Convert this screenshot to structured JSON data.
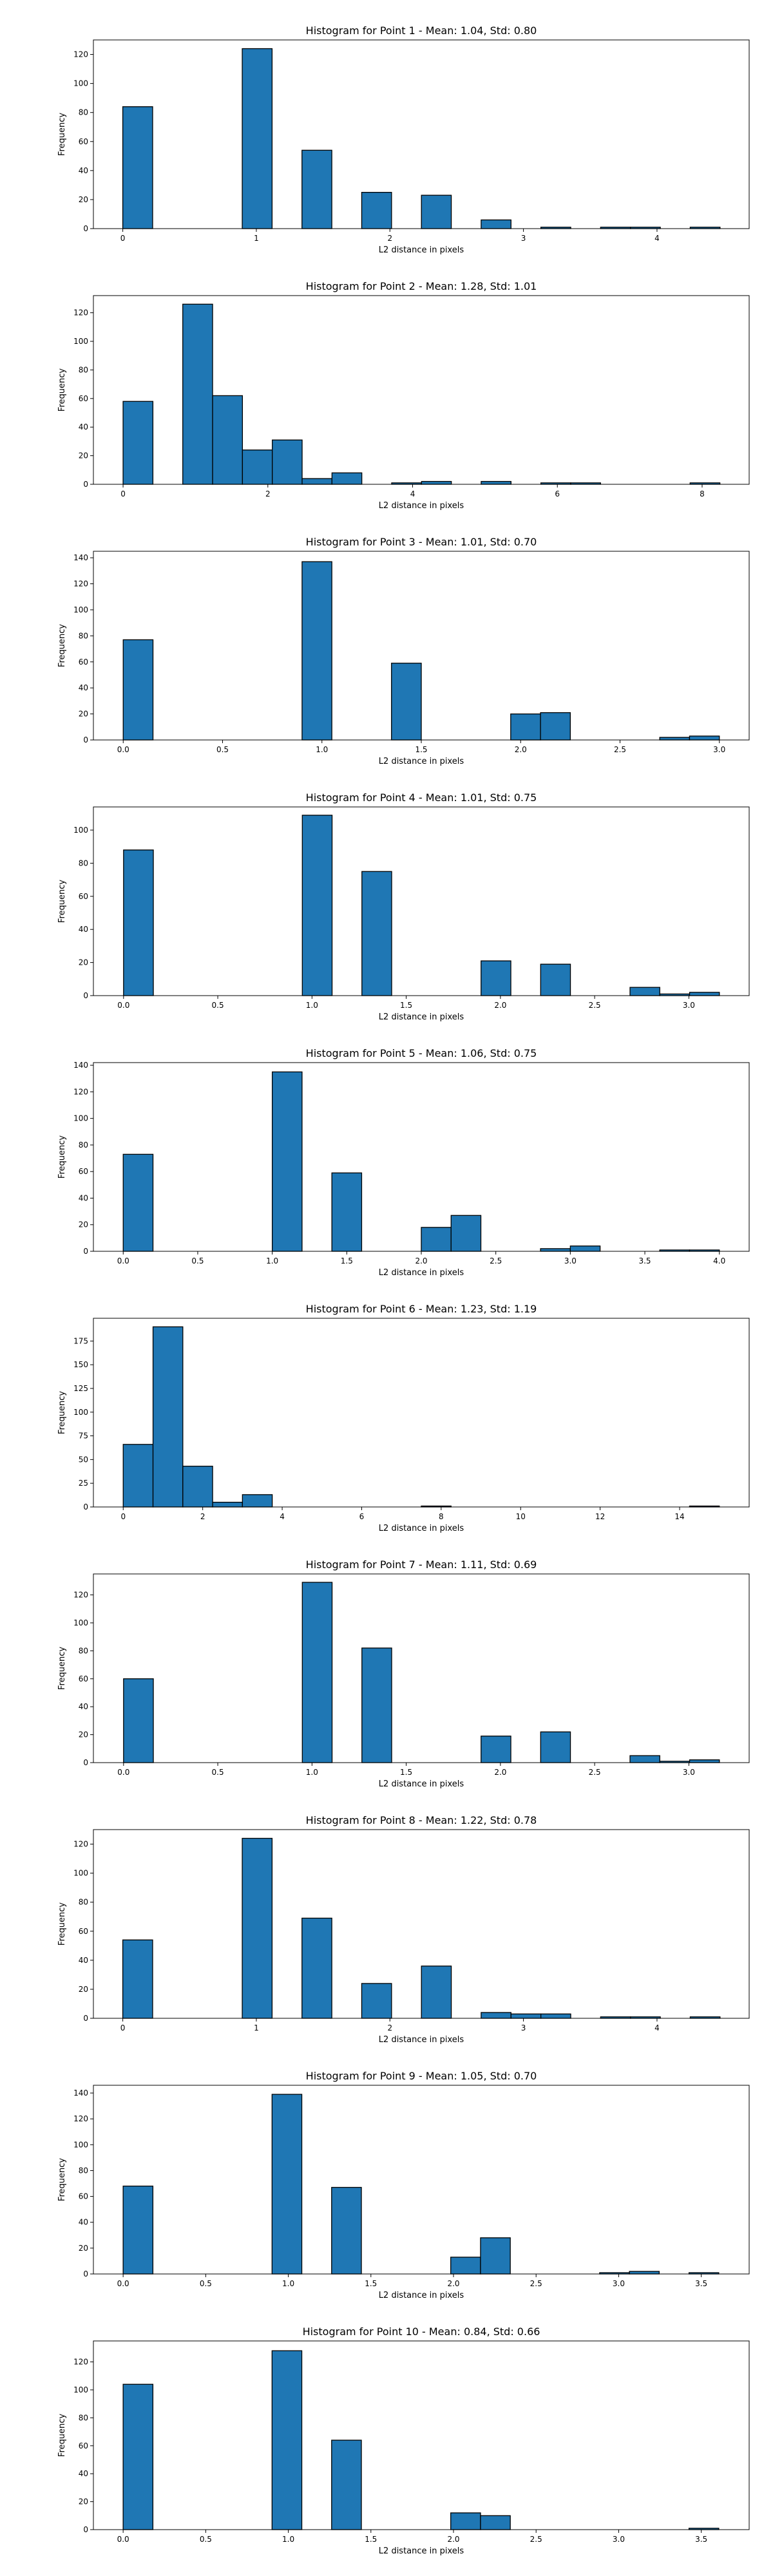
{
  "figure": {
    "bar_color": "#1f77b4",
    "edge_color": "#000000"
  },
  "chart_data": [
    {
      "type": "bar",
      "title": "Histogram for Point 1 - Mean: 1.04, Std: 0.80",
      "xlabel": "L2 distance in pixels",
      "ylabel": "Frequency",
      "xlim": [
        -0.22,
        4.69
      ],
      "ylim": [
        0,
        130
      ],
      "xticks": [
        0,
        1,
        2,
        3,
        4
      ],
      "xtick_labels": [
        "0",
        "1",
        "2",
        "3",
        "4"
      ],
      "yticks": [
        0,
        20,
        40,
        60,
        80,
        100,
        120
      ],
      "bin_edges": [
        0,
        0.2236,
        0.4472,
        0.6708,
        0.8944,
        1.118,
        1.3416,
        1.5652,
        1.7888,
        2.0124,
        2.236,
        2.4596,
        2.6832,
        2.9068,
        3.1304,
        3.354,
        3.5776,
        3.8012,
        4.0248,
        4.2484,
        4.472
      ],
      "values": [
        84,
        0,
        0,
        0,
        124,
        0,
        54,
        0,
        25,
        0,
        23,
        0,
        6,
        0,
        1,
        0,
        1,
        1,
        0,
        1
      ]
    },
    {
      "type": "bar",
      "title": "Histogram for Point 2 - Mean: 1.28, Std: 1.01",
      "xlabel": "L2 distance in pixels",
      "ylabel": "Frequency",
      "xlim": [
        -0.41,
        8.65
      ],
      "ylim": [
        0,
        132
      ],
      "xticks": [
        0,
        2,
        4,
        6,
        8
      ],
      "xtick_labels": [
        "0",
        "2",
        "4",
        "6",
        "8"
      ],
      "yticks": [
        0,
        20,
        40,
        60,
        80,
        100,
        120
      ],
      "bin_edges": [
        0,
        0.4123,
        0.8246,
        1.2369,
        1.6492,
        2.0615,
        2.4738,
        2.8861,
        3.2984,
        3.7107,
        4.123,
        4.5353,
        4.9476,
        5.3599,
        5.7722,
        6.1845,
        6.5968,
        7.0091,
        7.4214,
        7.8337,
        8.246
      ],
      "values": [
        58,
        0,
        126,
        62,
        24,
        31,
        4,
        8,
        0,
        1,
        2,
        0,
        2,
        0,
        1,
        1,
        0,
        0,
        0,
        1
      ]
    },
    {
      "type": "bar",
      "title": "Histogram for Point 3 - Mean: 1.01, Std: 0.70",
      "xlabel": "L2 distance in pixels",
      "ylabel": "Frequency",
      "xlim": [
        -0.15,
        3.15
      ],
      "ylim": [
        0,
        145
      ],
      "xticks": [
        0,
        0.5,
        1,
        1.5,
        2,
        2.5,
        3
      ],
      "xtick_labels": [
        "0.0",
        "0.5",
        "1.0",
        "1.5",
        "2.0",
        "2.5",
        "3.0"
      ],
      "yticks": [
        0,
        20,
        40,
        60,
        80,
        100,
        120,
        140
      ],
      "bin_edges": [
        0,
        0.15,
        0.3,
        0.45,
        0.6,
        0.75,
        0.9,
        1.05,
        1.2,
        1.35,
        1.5,
        1.65,
        1.8,
        1.95,
        2.1,
        2.25,
        2.4,
        2.55,
        2.7,
        2.85,
        3.0
      ],
      "values": [
        77,
        0,
        0,
        0,
        0,
        0,
        137,
        0,
        0,
        59,
        0,
        0,
        0,
        20,
        21,
        0,
        0,
        0,
        2,
        3
      ]
    },
    {
      "type": "bar",
      "title": "Histogram for Point 4 - Mean: 1.01, Std: 0.75",
      "xlabel": "L2 distance in pixels",
      "ylabel": "Frequency",
      "xlim": [
        -0.16,
        3.32
      ],
      "ylim": [
        0,
        114
      ],
      "xticks": [
        0,
        0.5,
        1,
        1.5,
        2,
        2.5,
        3
      ],
      "xtick_labels": [
        "0.0",
        "0.5",
        "1.0",
        "1.5",
        "2.0",
        "2.5",
        "3.0"
      ],
      "yticks": [
        0,
        20,
        40,
        60,
        80,
        100
      ],
      "bin_edges": [
        0,
        0.1581,
        0.3162,
        0.4743,
        0.6324,
        0.7905,
        0.9486,
        1.1067,
        1.2648,
        1.4229,
        1.581,
        1.7391,
        1.8972,
        2.0553,
        2.2134,
        2.3715,
        2.5296,
        2.6877,
        2.8458,
        3.0039,
        3.162
      ],
      "values": [
        88,
        0,
        0,
        0,
        0,
        0,
        109,
        0,
        75,
        0,
        0,
        0,
        21,
        0,
        19,
        0,
        0,
        5,
        1,
        2
      ]
    },
    {
      "type": "bar",
      "title": "Histogram for Point 5 - Mean: 1.06, Std: 0.75",
      "xlabel": "L2 distance in pixels",
      "ylabel": "Frequency",
      "xlim": [
        -0.2,
        4.2
      ],
      "ylim": [
        0,
        142
      ],
      "xticks": [
        0,
        0.5,
        1,
        1.5,
        2,
        2.5,
        3,
        3.5,
        4
      ],
      "xtick_labels": [
        "0.0",
        "0.5",
        "1.0",
        "1.5",
        "2.0",
        "2.5",
        "3.0",
        "3.5",
        "4.0"
      ],
      "yticks": [
        0,
        20,
        40,
        60,
        80,
        100,
        120,
        140
      ],
      "bin_edges": [
        0,
        0.2,
        0.4,
        0.6,
        0.8,
        1.0,
        1.2,
        1.4,
        1.6,
        1.8,
        2.0,
        2.2,
        2.4,
        2.6,
        2.8,
        3.0,
        3.2,
        3.4,
        3.6,
        3.8,
        4.0
      ],
      "values": [
        73,
        0,
        0,
        0,
        0,
        135,
        0,
        59,
        0,
        0,
        18,
        27,
        0,
        0,
        2,
        4,
        0,
        0,
        1,
        1
      ]
    },
    {
      "type": "bar",
      "title": "Histogram for Point 6 - Mean: 1.23, Std: 1.19",
      "xlabel": "L2 distance in pixels",
      "ylabel": "Frequency",
      "xlim": [
        -0.75,
        15.75
      ],
      "ylim": [
        0,
        199
      ],
      "xticks": [
        0,
        2,
        4,
        6,
        8,
        10,
        12,
        14
      ],
      "xtick_labels": [
        "0",
        "2",
        "4",
        "6",
        "8",
        "10",
        "12",
        "14"
      ],
      "yticks": [
        0,
        25,
        50,
        75,
        100,
        125,
        150,
        175
      ],
      "bin_edges": [
        0,
        0.75,
        1.5,
        2.25,
        3.0,
        3.75,
        4.5,
        5.25,
        6.0,
        6.75,
        7.5,
        8.25,
        9.0,
        9.75,
        10.5,
        11.25,
        12.0,
        12.75,
        13.5,
        14.25,
        15.0
      ],
      "values": [
        66,
        190,
        43,
        5,
        13,
        0,
        0,
        0,
        0,
        0,
        1,
        0,
        0,
        0,
        0,
        0,
        0,
        0,
        0,
        1
      ]
    },
    {
      "type": "bar",
      "title": "Histogram for Point 7 - Mean: 1.11, Std: 0.69",
      "xlabel": "L2 distance in pixels",
      "ylabel": "Frequency",
      "xlim": [
        -0.16,
        3.32
      ],
      "ylim": [
        0,
        135
      ],
      "xticks": [
        0,
        0.5,
        1,
        1.5,
        2,
        2.5,
        3
      ],
      "xtick_labels": [
        "0.0",
        "0.5",
        "1.0",
        "1.5",
        "2.0",
        "2.5",
        "3.0"
      ],
      "yticks": [
        0,
        20,
        40,
        60,
        80,
        100,
        120
      ],
      "bin_edges": [
        0,
        0.1581,
        0.3162,
        0.4743,
        0.6324,
        0.7905,
        0.9486,
        1.1067,
        1.2648,
        1.4229,
        1.581,
        1.7391,
        1.8972,
        2.0553,
        2.2134,
        2.3715,
        2.5296,
        2.6877,
        2.8458,
        3.0039,
        3.162
      ],
      "values": [
        60,
        0,
        0,
        0,
        0,
        0,
        129,
        0,
        82,
        0,
        0,
        0,
        19,
        0,
        22,
        0,
        0,
        5,
        1,
        2
      ]
    },
    {
      "type": "bar",
      "title": "Histogram for Point 8 - Mean: 1.22, Std: 0.78",
      "xlabel": "L2 distance in pixels",
      "ylabel": "Frequency",
      "xlim": [
        -0.22,
        4.69
      ],
      "ylim": [
        0,
        130
      ],
      "xticks": [
        0,
        1,
        2,
        3,
        4
      ],
      "xtick_labels": [
        "0",
        "1",
        "2",
        "3",
        "4"
      ],
      "yticks": [
        0,
        20,
        40,
        60,
        80,
        100,
        120
      ],
      "bin_edges": [
        0,
        0.2236,
        0.4472,
        0.6708,
        0.8944,
        1.118,
        1.3416,
        1.5652,
        1.7888,
        2.0124,
        2.236,
        2.4596,
        2.6832,
        2.9068,
        3.1304,
        3.354,
        3.5776,
        3.8012,
        4.0248,
        4.2484,
        4.472
      ],
      "values": [
        54,
        0,
        0,
        0,
        124,
        0,
        69,
        0,
        24,
        0,
        36,
        0,
        4,
        3,
        3,
        0,
        1,
        1,
        0,
        1
      ]
    },
    {
      "type": "bar",
      "title": "Histogram for Point 9 - Mean: 1.05, Std: 0.70",
      "xlabel": "L2 distance in pixels",
      "ylabel": "Frequency",
      "xlim": [
        -0.18,
        3.79
      ],
      "ylim": [
        0,
        146
      ],
      "xticks": [
        0,
        0.5,
        1,
        1.5,
        2,
        2.5,
        3,
        3.5
      ],
      "xtick_labels": [
        "0.0",
        "0.5",
        "1.0",
        "1.5",
        "2.0",
        "2.5",
        "3.0",
        "3.5"
      ],
      "yticks": [
        0,
        20,
        40,
        60,
        80,
        100,
        120,
        140
      ],
      "bin_edges": [
        0,
        0.1803,
        0.3606,
        0.5409,
        0.7212,
        0.9015,
        1.0818,
        1.2621,
        1.4424,
        1.6227,
        1.803,
        1.9833,
        2.1636,
        2.3439,
        2.5242,
        2.7045,
        2.8848,
        3.0651,
        3.2454,
        3.4257,
        3.606
      ],
      "values": [
        68,
        0,
        0,
        0,
        0,
        139,
        0,
        67,
        0,
        0,
        0,
        13,
        28,
        0,
        0,
        0,
        1,
        2,
        0,
        1
      ]
    },
    {
      "type": "bar",
      "title": "Histogram for Point 10 - Mean: 0.84, Std: 0.66",
      "xlabel": "L2 distance in pixels",
      "ylabel": "Frequency",
      "xlim": [
        -0.18,
        3.79
      ],
      "ylim": [
        0,
        135
      ],
      "xticks": [
        0,
        0.5,
        1,
        1.5,
        2,
        2.5,
        3,
        3.5
      ],
      "xtick_labels": [
        "0.0",
        "0.5",
        "1.0",
        "1.5",
        "2.0",
        "2.5",
        "3.0",
        "3.5"
      ],
      "yticks": [
        0,
        20,
        40,
        60,
        80,
        100,
        120
      ],
      "bin_edges": [
        0,
        0.1803,
        0.3606,
        0.5409,
        0.7212,
        0.9015,
        1.0818,
        1.2621,
        1.4424,
        1.6227,
        1.803,
        1.9833,
        2.1636,
        2.3439,
        2.5242,
        2.7045,
        2.8848,
        3.0651,
        3.2454,
        3.4257,
        3.606
      ],
      "values": [
        104,
        0,
        0,
        0,
        0,
        128,
        0,
        64,
        0,
        0,
        0,
        12,
        10,
        0,
        0,
        0,
        0,
        0,
        0,
        1
      ]
    }
  ]
}
